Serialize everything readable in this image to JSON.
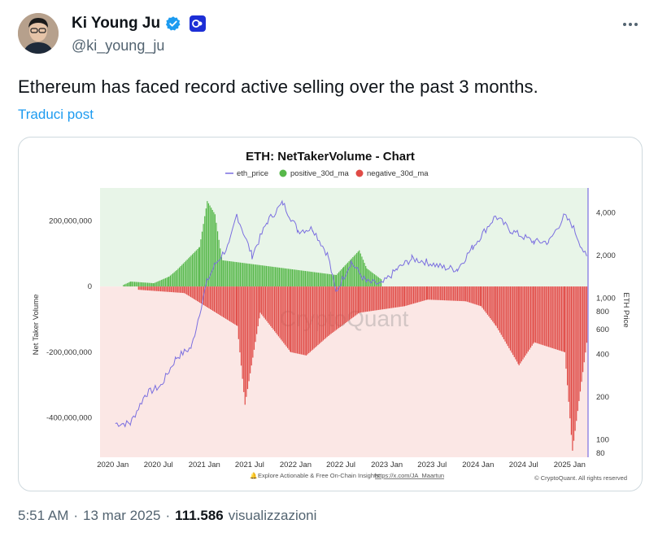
{
  "author": {
    "display_name": "Ki Young Ju",
    "handle": "@ki_young_ju",
    "verified_icon": "verified-badge-icon",
    "org_icon": "cryptoquant-org-badge-icon"
  },
  "tweet": {
    "text": "Ethereum has faced record active selling over the past 3 months.",
    "translate_label": "Traduci post",
    "time": "5:51 AM",
    "date": "13 mar 2025",
    "views_count": "111.586",
    "views_label": "visualizzazioni",
    "separator": "·"
  },
  "chart_data": {
    "type": "area",
    "title": "ETH: NetTakerVolume - Chart",
    "legend": [
      "eth_price",
      "positive_30d_ma",
      "negative_30d_ma"
    ],
    "legend_position": "top-center",
    "ylabel": "Net Taker Volume",
    "y2label": "ETH Price",
    "y2_scale": "log",
    "ylim": [
      -520000000,
      300000000
    ],
    "y_ticks": [
      "200,000,000",
      "0",
      "-200,000,000",
      "-400,000,000"
    ],
    "y2_ticks": [
      "4,000",
      "2,000",
      "1,000",
      "800",
      "600",
      "400",
      "200",
      "100",
      "80"
    ],
    "x_ticks": [
      "2020 Jan",
      "2020 Jul",
      "2021 Jan",
      "2021 Jul",
      "2022 Jan",
      "2022 Jul",
      "2023 Jan",
      "2023 Jul",
      "2024 Jan",
      "2024 Jul",
      "2025 Jan"
    ],
    "footer": "Explore Actionable & Free On-Chain Insights:",
    "footer_link": "https://x.com/JA_Maartun",
    "copyright": "© CryptoQuant. All rights reserved",
    "watermark": "CryptoQuant",
    "eth_price": {
      "x": [
        "2020-01",
        "2020-03",
        "2020-05",
        "2020-07",
        "2020-09",
        "2020-11",
        "2021-01",
        "2021-02",
        "2021-04",
        "2021-05",
        "2021-07",
        "2021-09",
        "2021-11",
        "2022-01",
        "2022-03",
        "2022-05",
        "2022-06",
        "2022-08",
        "2022-10",
        "2022-12",
        "2023-02",
        "2023-04",
        "2023-06",
        "2023-08",
        "2023-10",
        "2023-12",
        "2024-03",
        "2024-05",
        "2024-08",
        "2024-10",
        "2024-12",
        "2025-01",
        "2025-03"
      ],
      "y": [
        130,
        130,
        210,
        240,
        380,
        450,
        1300,
        1700,
        2400,
        3900,
        2000,
        3500,
        4700,
        3000,
        3100,
        2000,
        1100,
        1800,
        1300,
        1250,
        1600,
        1900,
        1800,
        1650,
        1600,
        2300,
        3800,
        3000,
        2500,
        2500,
        3800,
        3300,
        1900
      ]
    },
    "positive_30d_ma": {
      "x": [
        "2020-02",
        "2020-03",
        "2020-06",
        "2020-08",
        "2020-09",
        "2020-12",
        "2021-01",
        "2021-02",
        "2021-03",
        "2022-06",
        "2022-07",
        "2022-09",
        "2022-10",
        "2022-12"
      ],
      "y": [
        5000000,
        15000000,
        10000000,
        30000000,
        50000000,
        120000000,
        260000000,
        220000000,
        80000000,
        35000000,
        60000000,
        110000000,
        55000000,
        20000000
      ]
    },
    "negative_30d_ma": {
      "x": [
        "2020-04",
        "2020-10",
        "2021-05",
        "2021-06",
        "2021-08",
        "2021-12",
        "2022-02",
        "2022-05",
        "2022-09",
        "2023-03",
        "2023-06",
        "2023-11",
        "2024-01",
        "2024-03",
        "2024-06",
        "2024-08",
        "2024-12",
        "2025-01",
        "2025-02",
        "2025-03"
      ],
      "y": [
        -10000000,
        -20000000,
        -120000000,
        -360000000,
        -80000000,
        -200000000,
        -210000000,
        -150000000,
        -80000000,
        -60000000,
        -40000000,
        -45000000,
        -60000000,
        -120000000,
        -240000000,
        -170000000,
        -200000000,
        -500000000,
        -320000000,
        -160000000
      ]
    }
  },
  "colors": {
    "eth_line": "#7b6fe0",
    "positive": "#57b84a",
    "negative": "#e04b46",
    "pos_bg": "#e8f5e8",
    "neg_bg": "#fbe7e5",
    "link": "#1d9bf0",
    "verified": "#1d9bf0"
  }
}
